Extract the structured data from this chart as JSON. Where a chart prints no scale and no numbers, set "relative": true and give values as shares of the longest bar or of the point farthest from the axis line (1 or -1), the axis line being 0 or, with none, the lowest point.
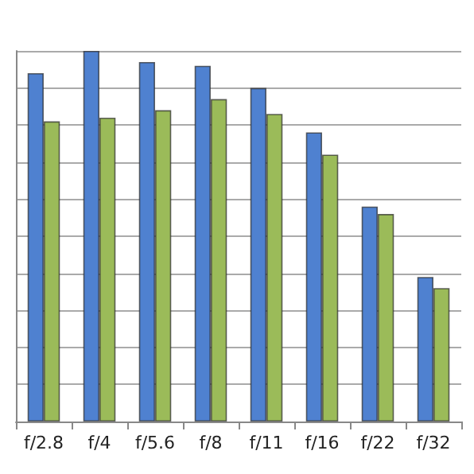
{
  "chart_data": {
    "type": "bar",
    "relative": true,
    "grid": "y",
    "categories": [
      "f/2.8",
      "f/4",
      "f/5.6",
      "f/8",
      "f/11",
      "f/16",
      "f/22",
      "f/32"
    ],
    "series": [
      {
        "color": "#4f81d0",
        "values": [
          0.94,
          1,
          0.97,
          0.96,
          0.9,
          0.78,
          0.58,
          0.39
        ]
      },
      {
        "color": "#9bbb59",
        "values": [
          0.81,
          0.82,
          0.84,
          0.87,
          0.83,
          0.72,
          0.56,
          0.36
        ]
      }
    ]
  }
}
